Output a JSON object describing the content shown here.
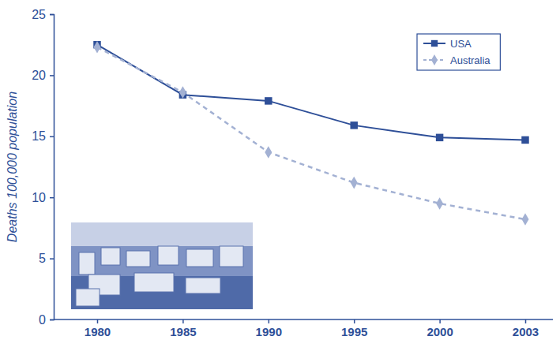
{
  "chart_data": {
    "type": "line",
    "y_label": "Deaths 100,000 population",
    "categories": [
      "1980",
      "1985",
      "1990",
      "1995",
      "2000",
      "2003"
    ],
    "series": [
      {
        "name": "USA",
        "color": "#2e4f98",
        "marker": "square",
        "line_style": "solid",
        "values": [
          22.5,
          18.4,
          17.9,
          15.9,
          14.9,
          14.7
        ]
      },
      {
        "name": "Australia",
        "color": "#a3b1d3",
        "marker": "diamond",
        "line_style": "dashed",
        "values": [
          22.3,
          18.6,
          13.7,
          11.2,
          9.5,
          8.2
        ]
      }
    ],
    "ylim": [
      0,
      25
    ],
    "yticks": [
      0,
      5,
      10,
      15,
      20,
      25
    ],
    "legend": "top-right",
    "grid": false
  }
}
